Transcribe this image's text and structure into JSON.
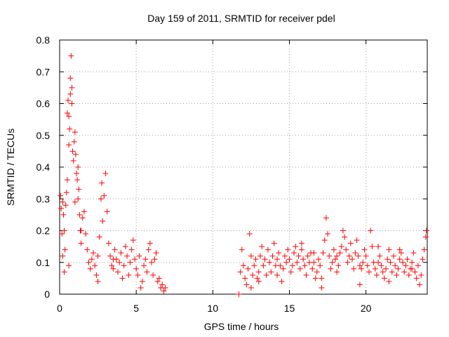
{
  "chart_data": {
    "type": "scatter",
    "title": "Day 159 of 2011, SRMTID for receiver pdel",
    "xlabel": "GPS time / hours",
    "ylabel": "SRMTID / TECUs",
    "xlim": [
      0,
      24
    ],
    "ylim": [
      0,
      0.8
    ],
    "xticks": [
      0,
      5,
      10,
      15,
      20
    ],
    "xtick_labels": [
      "0",
      "5",
      "10",
      "15",
      "20"
    ],
    "yticks": [
      0,
      0.1,
      0.2,
      0.3,
      0.4,
      0.5,
      0.6,
      0.7,
      0.8
    ],
    "ytick_labels": [
      "0",
      "0.1",
      "0.2",
      "0.3",
      "0.4",
      "0.5",
      "0.6",
      "0.7",
      "0.8"
    ],
    "grid": true,
    "marker": "+",
    "color": "#ff0000",
    "series": [
      {
        "name": "SRMTID",
        "points": [
          [
            0.05,
            0.31
          ],
          [
            0.1,
            0.27
          ],
          [
            0.15,
            0.19
          ],
          [
            0.2,
            0.29
          ],
          [
            0.25,
            0.25
          ],
          [
            0.3,
            0.2
          ],
          [
            0.35,
            0.14
          ],
          [
            0.4,
            0.28
          ],
          [
            0.45,
            0.32
          ],
          [
            0.5,
            0.36
          ],
          [
            0.5,
            0.57
          ],
          [
            0.55,
            0.61
          ],
          [
            0.6,
            0.47
          ],
          [
            0.6,
            0.56
          ],
          [
            0.65,
            0.52
          ],
          [
            0.7,
            0.63
          ],
          [
            0.7,
            0.68
          ],
          [
            0.75,
            0.75
          ],
          [
            0.8,
            0.65
          ],
          [
            0.8,
            0.6
          ],
          [
            0.85,
            0.45
          ],
          [
            0.9,
            0.42
          ],
          [
            0.95,
            0.48
          ],
          [
            1.0,
            0.51
          ],
          [
            1.05,
            0.44
          ],
          [
            1.1,
            0.38
          ],
          [
            1.15,
            0.36
          ],
          [
            1.2,
            0.4
          ],
          [
            1.25,
            0.33
          ],
          [
            1.3,
            0.25
          ],
          [
            1.35,
            0.2
          ],
          [
            1.4,
            0.16
          ],
          [
            1.5,
            0.24
          ],
          [
            1.6,
            0.26
          ],
          [
            1.7,
            0.19
          ],
          [
            1.8,
            0.14
          ],
          [
            1.9,
            0.1
          ],
          [
            2.0,
            0.08
          ],
          [
            2.1,
            0.11
          ],
          [
            2.2,
            0.13
          ],
          [
            2.3,
            0.09
          ],
          [
            2.4,
            0.06
          ],
          [
            2.5,
            0.12
          ],
          [
            2.6,
            0.18
          ],
          [
            2.7,
            0.3
          ],
          [
            2.75,
            0.35
          ],
          [
            2.8,
            0.23
          ],
          [
            2.9,
            0.31
          ],
          [
            3.0,
            0.38
          ],
          [
            3.1,
            0.26
          ],
          [
            3.2,
            0.16
          ],
          [
            3.3,
            0.12
          ],
          [
            3.4,
            0.09
          ],
          [
            3.5,
            0.08
          ],
          [
            3.6,
            0.14
          ],
          [
            3.7,
            0.11
          ],
          [
            3.8,
            0.07
          ],
          [
            3.9,
            0.1
          ],
          [
            4.0,
            0.13
          ],
          [
            4.1,
            0.05
          ],
          [
            4.2,
            0.09
          ],
          [
            4.3,
            0.15
          ],
          [
            4.4,
            0.12
          ],
          [
            4.5,
            0.06
          ],
          [
            4.6,
            0.1
          ],
          [
            4.7,
            0.14
          ],
          [
            4.8,
            0.17
          ],
          [
            4.9,
            0.11
          ],
          [
            5.0,
            0.08
          ],
          [
            5.1,
            0.06
          ],
          [
            5.2,
            0.12
          ],
          [
            5.3,
            0.02
          ],
          [
            5.4,
            0.04
          ],
          [
            5.5,
            0.09
          ],
          [
            5.6,
            0.11
          ],
          [
            5.7,
            0.07
          ],
          [
            5.8,
            0.14
          ],
          [
            5.9,
            0.16
          ],
          [
            6.0,
            0.1
          ],
          [
            6.1,
            0.06
          ],
          [
            6.2,
            0.11
          ],
          [
            6.3,
            0.13
          ],
          [
            6.4,
            0.04
          ],
          [
            6.5,
            0.05
          ],
          [
            6.6,
            0.02
          ],
          [
            6.7,
            0.03
          ],
          [
            6.8,
            0.01
          ],
          [
            6.9,
            0.02
          ],
          [
            0.3,
            0.07
          ],
          [
            0.6,
            0.09
          ],
          [
            1.0,
            0.29
          ],
          [
            1.2,
            0.3
          ],
          [
            0.2,
            0.12
          ],
          [
            1.4,
            0.2
          ],
          [
            2.5,
            0.04
          ],
          [
            3.5,
            0.11
          ],
          [
            11.7,
            0.0
          ],
          [
            11.8,
            0.07
          ],
          [
            11.9,
            0.14
          ],
          [
            12.0,
            0.09
          ],
          [
            12.1,
            0.05
          ],
          [
            12.2,
            0.03
          ],
          [
            12.3,
            0.08
          ],
          [
            12.4,
            0.19
          ],
          [
            12.5,
            0.12
          ],
          [
            12.6,
            0.06
          ],
          [
            12.7,
            0.09
          ],
          [
            12.8,
            0.11
          ],
          [
            12.9,
            0.05
          ],
          [
            13.0,
            0.07
          ],
          [
            13.1,
            0.12
          ],
          [
            13.2,
            0.15
          ],
          [
            13.3,
            0.09
          ],
          [
            13.4,
            0.11
          ],
          [
            13.5,
            0.06
          ],
          [
            13.6,
            0.14
          ],
          [
            13.7,
            0.1
          ],
          [
            13.8,
            0.07
          ],
          [
            13.9,
            0.12
          ],
          [
            14.0,
            0.16
          ],
          [
            14.1,
            0.09
          ],
          [
            14.2,
            0.06
          ],
          [
            14.3,
            0.13
          ],
          [
            14.4,
            0.09
          ],
          [
            14.5,
            0.04
          ],
          [
            14.6,
            0.08
          ],
          [
            14.7,
            0.12
          ],
          [
            14.8,
            0.1
          ],
          [
            14.9,
            0.14
          ],
          [
            15.0,
            0.11
          ],
          [
            15.1,
            0.07
          ],
          [
            15.2,
            0.09
          ],
          [
            15.3,
            0.13
          ],
          [
            15.4,
            0.15
          ],
          [
            15.5,
            0.1
          ],
          [
            15.6,
            0.12
          ],
          [
            15.7,
            0.08
          ],
          [
            15.8,
            0.14
          ],
          [
            15.9,
            0.11
          ],
          [
            16.0,
            0.09
          ],
          [
            16.1,
            0.06
          ],
          [
            16.2,
            0.12
          ],
          [
            16.3,
            0.1
          ],
          [
            16.4,
            0.13
          ],
          [
            16.5,
            0.08
          ],
          [
            16.6,
            0.1
          ],
          [
            16.7,
            0.05
          ],
          [
            16.8,
            0.07
          ],
          [
            16.9,
            0.11
          ],
          [
            17.0,
            0.09
          ],
          [
            17.1,
            0.05
          ],
          [
            17.2,
            0.13
          ],
          [
            17.3,
            0.17
          ],
          [
            17.4,
            0.24
          ],
          [
            17.5,
            0.19
          ],
          [
            17.6,
            0.12
          ],
          [
            17.7,
            0.08
          ],
          [
            17.8,
            0.1
          ],
          [
            17.9,
            0.14
          ],
          [
            18.0,
            0.11
          ],
          [
            18.1,
            0.07
          ],
          [
            18.2,
            0.09
          ],
          [
            18.3,
            0.13
          ],
          [
            18.4,
            0.15
          ],
          [
            18.5,
            0.2
          ],
          [
            18.6,
            0.18
          ],
          [
            18.7,
            0.14
          ],
          [
            18.8,
            0.1
          ],
          [
            18.9,
            0.12
          ],
          [
            19.0,
            0.16
          ],
          [
            19.1,
            0.11
          ],
          [
            19.2,
            0.08
          ],
          [
            19.3,
            0.13
          ],
          [
            19.4,
            0.17
          ],
          [
            19.5,
            0.12
          ],
          [
            19.6,
            0.03
          ],
          [
            19.7,
            0.08
          ],
          [
            19.8,
            0.1
          ],
          [
            19.9,
            0.14
          ],
          [
            20.0,
            0.12
          ],
          [
            20.1,
            0.09
          ],
          [
            20.2,
            0.07
          ],
          [
            20.3,
            0.2
          ],
          [
            20.4,
            0.15
          ],
          [
            20.5,
            0.1
          ],
          [
            20.6,
            0.08
          ],
          [
            20.7,
            0.06
          ],
          [
            20.8,
            0.1
          ],
          [
            20.9,
            0.12
          ],
          [
            21.0,
            0.09
          ],
          [
            21.1,
            0.07
          ],
          [
            21.2,
            0.05
          ],
          [
            21.3,
            0.08
          ],
          [
            21.4,
            0.11
          ],
          [
            21.5,
            0.14
          ],
          [
            21.6,
            0.1
          ],
          [
            21.7,
            0.07
          ],
          [
            21.8,
            0.12
          ],
          [
            21.9,
            0.09
          ],
          [
            22.0,
            0.06
          ],
          [
            22.1,
            0.08
          ],
          [
            22.2,
            0.11
          ],
          [
            22.3,
            0.13
          ],
          [
            22.4,
            0.1
          ],
          [
            22.5,
            0.07
          ],
          [
            22.6,
            0.09
          ],
          [
            22.7,
            0.11
          ],
          [
            22.8,
            0.06
          ],
          [
            22.9,
            0.08
          ],
          [
            23.0,
            0.1
          ],
          [
            23.1,
            0.13
          ],
          [
            23.2,
            0.07
          ],
          [
            23.3,
            0.05
          ],
          [
            23.4,
            0.09
          ],
          [
            23.5,
            0.03
          ],
          [
            23.6,
            0.06
          ],
          [
            23.7,
            0.11
          ],
          [
            23.8,
            0.14
          ],
          [
            23.9,
            0.18
          ],
          [
            23.95,
            0.2
          ],
          [
            12.5,
            0.02
          ],
          [
            13.0,
            0.04
          ],
          [
            14.2,
            0.11
          ],
          [
            15.8,
            0.16
          ],
          [
            16.6,
            0.13
          ],
          [
            17.1,
            0.02
          ],
          [
            18.1,
            0.12
          ],
          [
            19.6,
            0.09
          ],
          [
            20.8,
            0.15
          ],
          [
            21.5,
            0.04
          ],
          [
            22.2,
            0.14
          ],
          [
            23.0,
            0.08
          ]
        ]
      }
    ]
  }
}
